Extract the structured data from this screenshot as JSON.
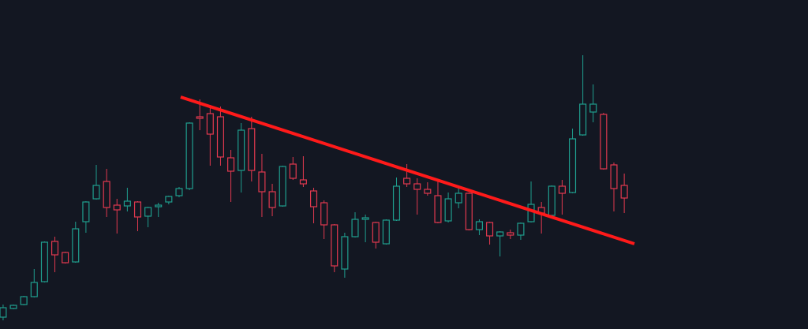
{
  "chart_data": {
    "type": "candlestick",
    "up_color": "#1f9e8e",
    "down_color": "#e2394f",
    "xlim": [
      -0.3,
      77.75
    ],
    "ylim": [
      0,
      417
    ],
    "open": [
      15,
      26,
      31,
      41,
      60,
      111,
      97,
      85,
      136,
      165,
      187,
      157,
      156,
      161,
      143,
      155,
      161,
      169,
      178,
      269,
      273,
      269,
      217,
      201,
      254,
      199,
      174,
      156,
      209,
      189,
      175,
      160,
      132,
      76,
      117,
      139,
      135,
      108,
      138,
      191,
      184,
      177,
      169,
      137,
      160,
      172,
      126,
      135,
      118,
      122,
      119,
      136,
      154,
      144,
      181,
      173,
      246,
      275,
      272,
      208,
      182
    ],
    "high": [
      31,
      31,
      42,
      76,
      111,
      117,
      98,
      136,
      162,
      208,
      203,
      165,
      179,
      162,
      155,
      160,
      169,
      180,
      262,
      291,
      284,
      282,
      227,
      261,
      269,
      222,
      184,
      207,
      218,
      219,
      179,
      163,
      133,
      122,
      148,
      145,
      136,
      139,
      192,
      209,
      191,
      186,
      187,
      173,
      182,
      173,
      139,
      136,
      124,
      126,
      135,
      187,
      161,
      182,
      189,
      254,
      347,
      310,
      274,
      211,
      197
    ],
    "low": [
      11,
      25,
      30,
      40,
      59,
      72,
      83,
      84,
      122,
      164,
      142,
      121,
      149,
      124,
      129,
      142,
      158,
      167,
      176,
      252,
      207,
      207,
      161,
      173,
      187,
      142,
      143,
      155,
      189,
      180,
      134,
      114,
      72,
      65,
      116,
      110,
      102,
      107,
      137,
      180,
      145,
      169,
      134,
      135,
      153,
      125,
      119,
      107,
      92,
      114,
      113,
      135,
      121,
      143,
      145,
      172,
      245,
      262,
      202,
      149,
      147
    ],
    "close": [
      27,
      30,
      41,
      59,
      110,
      94,
      84,
      127,
      161,
      182,
      154,
      151,
      162,
      142,
      154,
      157,
      168,
      178,
      261,
      267,
      247,
      218,
      200,
      252,
      201,
      174,
      154,
      206,
      191,
      184,
      155,
      132,
      80,
      117,
      139,
      141,
      110,
      138,
      181,
      184,
      177,
      172,
      135,
      165,
      172,
      126,
      136,
      118,
      123,
      119,
      134,
      158,
      147,
      181,
      172,
      241,
      285,
      285,
      203,
      178,
      166
    ],
    "lines": [
      {
        "color": "#ff1a1a",
        "x": [
          17.15,
          60.98
        ],
        "y": [
          294,
          108
        ]
      }
    ]
  }
}
